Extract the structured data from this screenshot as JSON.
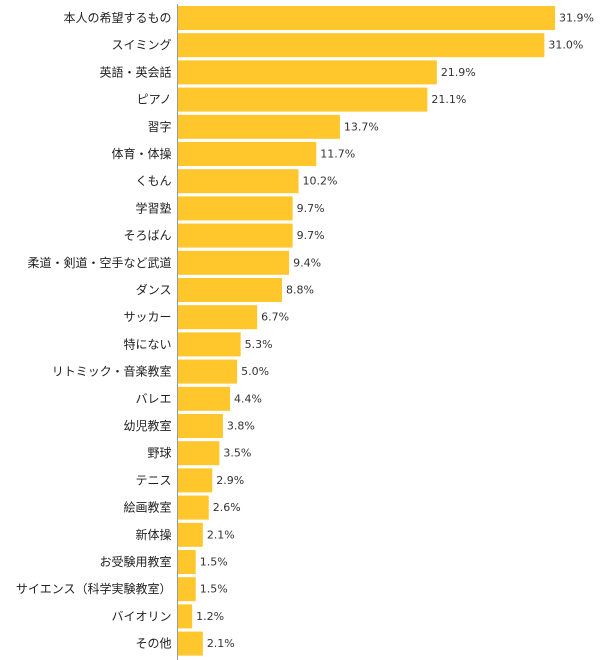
{
  "chart_data": {
    "type": "bar",
    "orientation": "horizontal",
    "categories": [
      "本人の希望するもの",
      "スイミング",
      "英語・英会話",
      "ピアノ",
      "習字",
      "体育・体操",
      "くもん",
      "学習塾",
      "そろばん",
      "柔道・剣道・空手など武道",
      "ダンス",
      "サッカー",
      "特にない",
      "リトミック・音楽教室",
      "バレエ",
      "幼児教室",
      "野球",
      "テニス",
      "絵画教室",
      "新体操",
      "お受験用教室",
      "サイエンス（科学実験教室）",
      "バイオリン",
      "その他"
    ],
    "values": [
      31.9,
      31.0,
      21.9,
      21.1,
      13.7,
      11.7,
      10.2,
      9.7,
      9.7,
      9.4,
      8.8,
      6.7,
      5.3,
      5.0,
      4.4,
      3.8,
      3.5,
      2.9,
      2.6,
      2.1,
      1.5,
      1.5,
      1.2,
      2.1
    ],
    "value_labels": [
      "31.9%",
      "31.0%",
      "21.9%",
      "21.1%",
      "13.7%",
      "11.7%",
      "10.2%",
      "9.7%",
      "9.7%",
      "9.4%",
      "8.8%",
      "6.7%",
      "5.3%",
      "5.0%",
      "4.4%",
      "3.8%",
      "3.5%",
      "2.9%",
      "2.6%",
      "2.1%",
      "1.5%",
      "1.5%",
      "1.2%",
      "2.1%"
    ],
    "unit": "%",
    "xlim": [
      0,
      31.9
    ],
    "bar_color": "#FFC72C",
    "axis_color": "#999999",
    "grid": false,
    "legend": "none"
  }
}
